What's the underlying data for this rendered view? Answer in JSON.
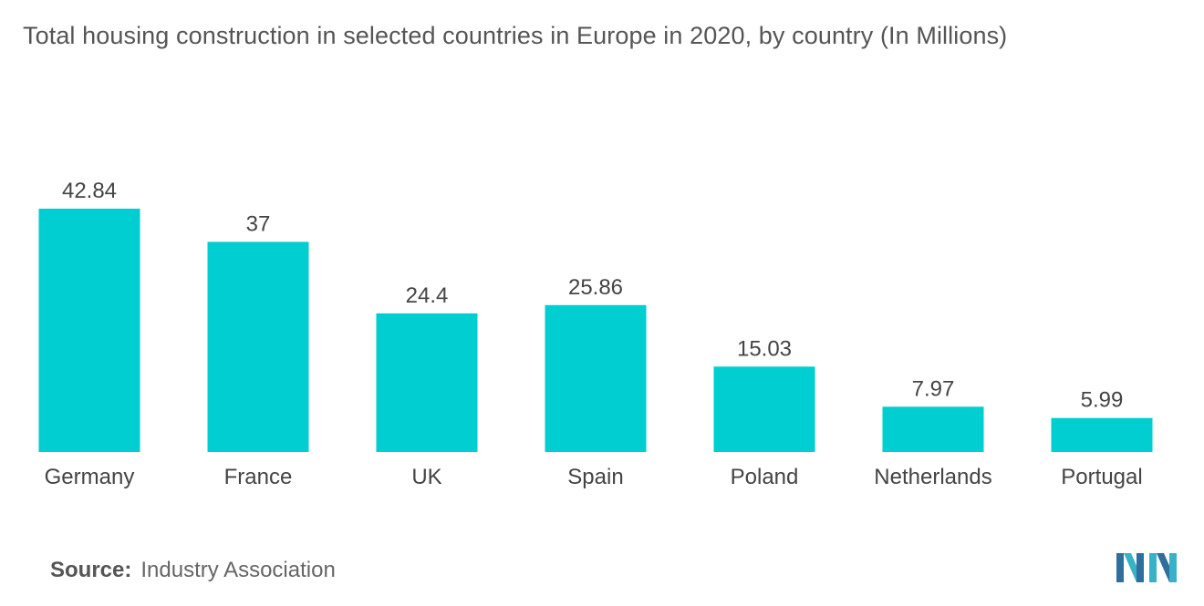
{
  "title": "Total housing construction in selected countries in Europe in 2020, by country (In Millions)",
  "source": {
    "label": "Source:",
    "text": "Industry Association"
  },
  "colors": {
    "bar": "#00CED1",
    "label_text": "#444444",
    "axis_text": "#444444"
  },
  "chart_data": {
    "type": "bar",
    "title": "Total housing construction in selected countries in Europe in 2020, by country (In Millions)",
    "xlabel": "",
    "ylabel": "",
    "categories": [
      "Germany",
      "France",
      "UK",
      "Spain",
      "Poland",
      "Netherlands",
      "Portugal"
    ],
    "values": [
      42.84,
      37,
      24.4,
      25.86,
      15.03,
      7.97,
      5.99
    ],
    "value_labels": [
      "42.84",
      "37",
      "24.4",
      "25.86",
      "15.03",
      "7.97",
      "5.99"
    ],
    "ylim": [
      0,
      42.84
    ],
    "grid": false,
    "legend": "none"
  },
  "logo": {
    "icon": "company-logo-icon"
  }
}
